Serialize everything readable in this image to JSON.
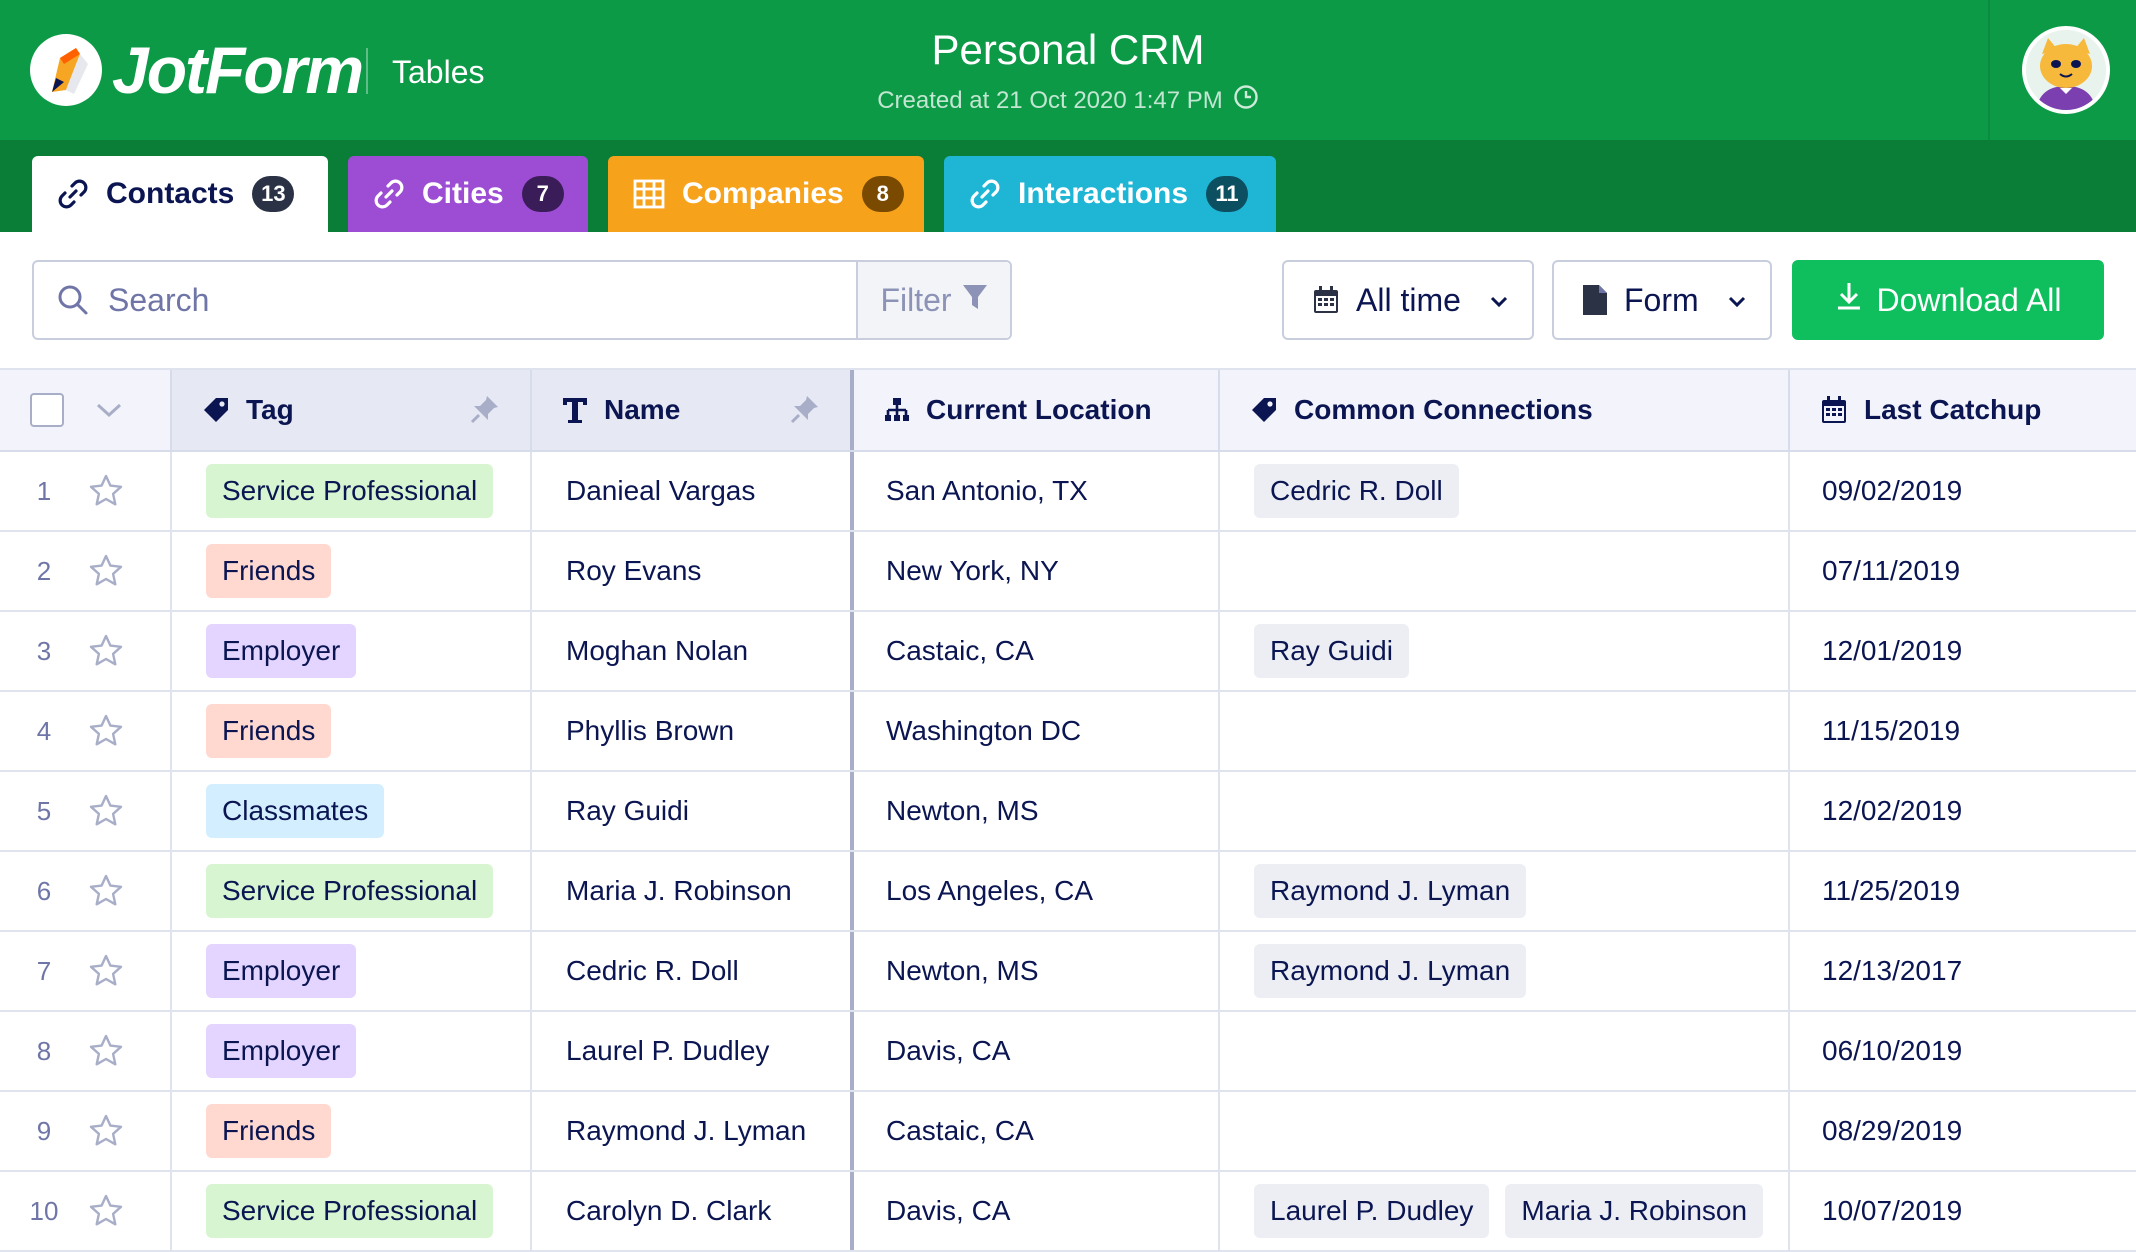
{
  "header": {
    "logo_text": "JotForm",
    "section": "Tables",
    "title": "Personal CRM",
    "created": "Created at 21 Oct 2020 1:47 PM"
  },
  "tabs": [
    {
      "label": "Contacts",
      "count": "13",
      "color": "#ffffff"
    },
    {
      "label": "Cities",
      "count": "7",
      "color": "#9c4dd3"
    },
    {
      "label": "Companies",
      "count": "8",
      "color": "#f7a21b"
    },
    {
      "label": "Interactions",
      "count": "11",
      "color": "#1fb6d6"
    }
  ],
  "toolbar": {
    "search_placeholder": "Search",
    "filter_label": "Filter",
    "time_label": "All time",
    "form_label": "Form",
    "download_label": "Download All"
  },
  "table": {
    "columns": [
      "Tag",
      "Name",
      "Current Location",
      "Common Connections",
      "Last Catchup"
    ],
    "tag_colors": {
      "Service Professional": "#d7f5d0",
      "Friends": "#ffd9d0",
      "Employer": "#e3d5ff",
      "Classmates": "#d3efff"
    },
    "rows": [
      {
        "num": "1",
        "tag": "Service Professional",
        "name": "Danieal Vargas",
        "location": "San Antonio, TX",
        "connections": [
          "Cedric R. Doll"
        ],
        "catchup": "09/02/2019"
      },
      {
        "num": "2",
        "tag": "Friends",
        "name": "Roy Evans",
        "location": "New York, NY",
        "connections": [],
        "catchup": "07/11/2019"
      },
      {
        "num": "3",
        "tag": "Employer",
        "name": "Moghan Nolan",
        "location": "Castaic, CA",
        "connections": [
          "Ray Guidi"
        ],
        "catchup": "12/01/2019"
      },
      {
        "num": "4",
        "tag": "Friends",
        "name": "Phyllis Brown",
        "location": "Washington DC",
        "connections": [],
        "catchup": "11/15/2019"
      },
      {
        "num": "5",
        "tag": "Classmates",
        "name": "Ray Guidi",
        "location": "Newton, MS",
        "connections": [],
        "catchup": "12/02/2019"
      },
      {
        "num": "6",
        "tag": "Service Professional",
        "name": "Maria J. Robinson",
        "location": "Los Angeles, CA",
        "connections": [
          "Raymond J. Lyman"
        ],
        "catchup": "11/25/2019"
      },
      {
        "num": "7",
        "tag": "Employer",
        "name": "Cedric R. Doll",
        "location": "Newton, MS",
        "connections": [
          "Raymond J. Lyman"
        ],
        "catchup": "12/13/2017"
      },
      {
        "num": "8",
        "tag": "Employer",
        "name": "Laurel P. Dudley",
        "location": "Davis, CA",
        "connections": [],
        "catchup": "06/10/2019"
      },
      {
        "num": "9",
        "tag": "Friends",
        "name": "Raymond J. Lyman",
        "location": "Castaic, CA",
        "connections": [],
        "catchup": "08/29/2019"
      },
      {
        "num": "10",
        "tag": "Service Professional",
        "name": "Carolyn D. Clark",
        "location": "Davis, CA",
        "connections": [
          "Laurel P. Dudley",
          "Maria J. Robinson"
        ],
        "catchup": "10/07/2019"
      }
    ]
  }
}
